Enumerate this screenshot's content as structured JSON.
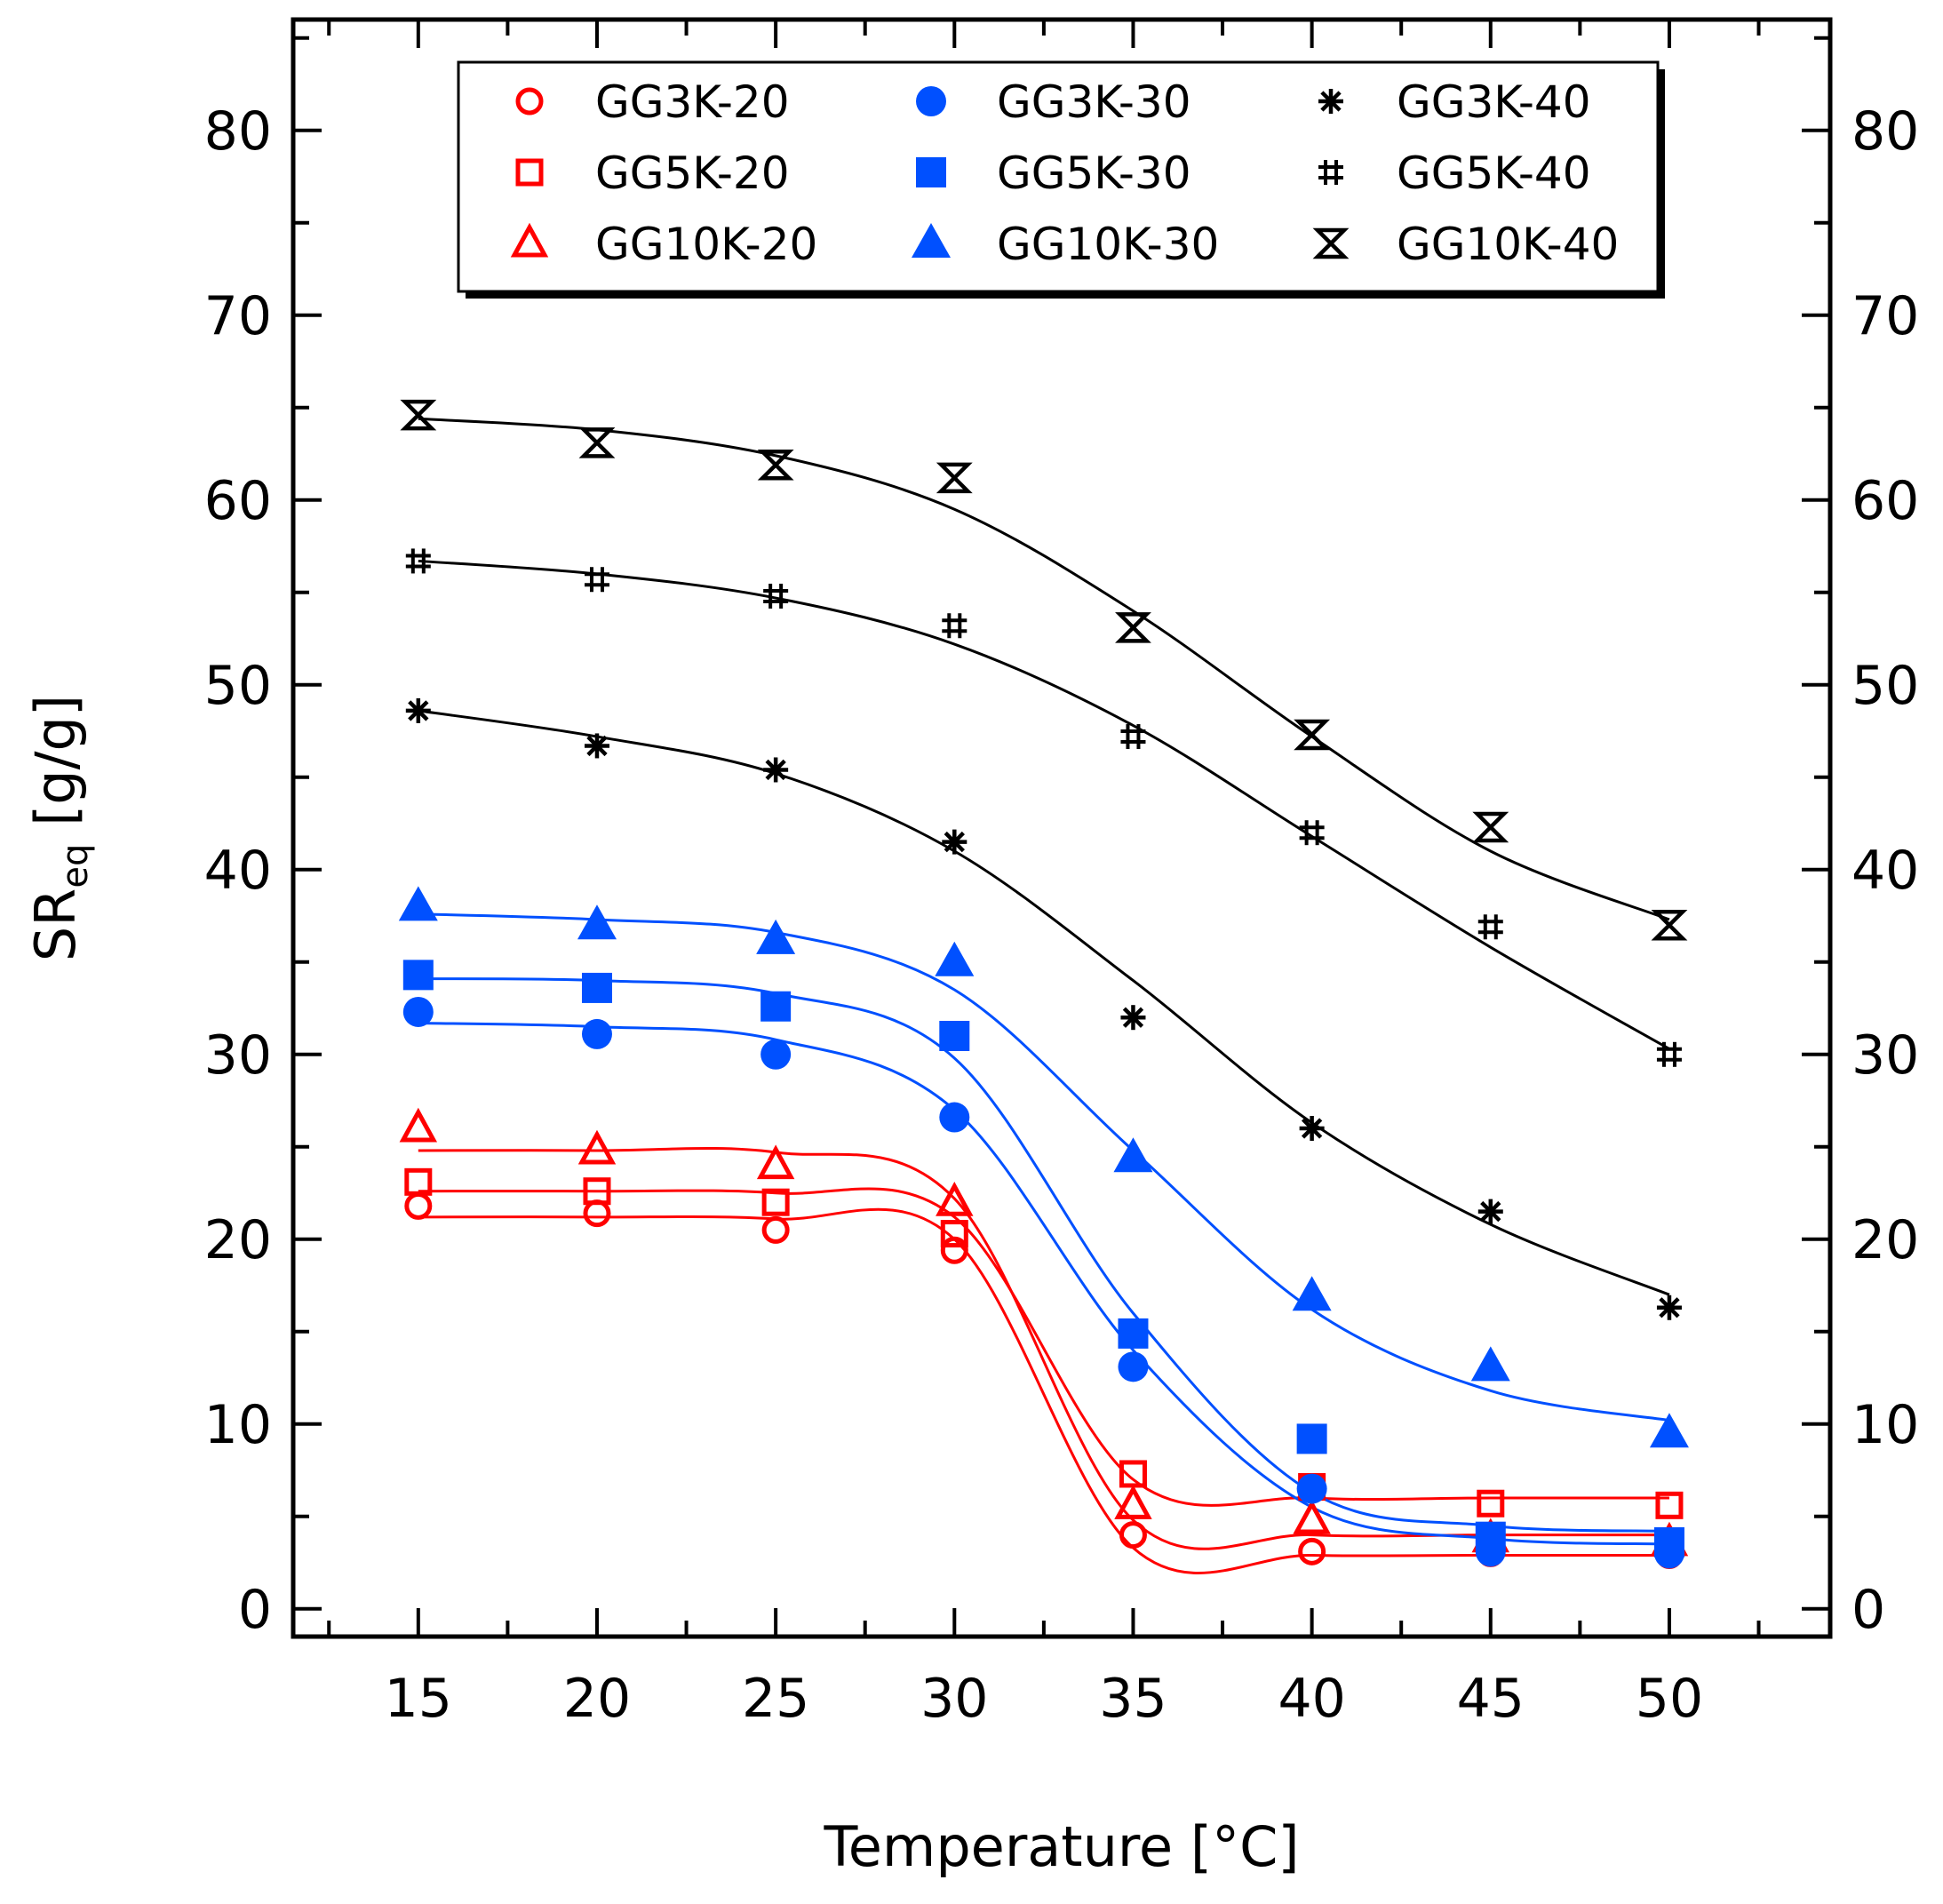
{
  "chart_data": {
    "type": "scatter",
    "title": "",
    "xlabel": "Temperature [°C]",
    "ylabel_main": "SR",
    "ylabel_sub": "eq",
    "ylabel_unit": " [g/g]",
    "xlim": [
      11.5,
      54.5
    ],
    "ylim": [
      -1.5,
      86
    ],
    "x_ticks": [
      15,
      20,
      25,
      30,
      35,
      40,
      45,
      50
    ],
    "x_tick_labels": [
      "15",
      "20",
      "25",
      "30",
      "35",
      "40",
      "45",
      "50"
    ],
    "y_ticks": [
      0,
      10,
      20,
      30,
      40,
      50,
      60,
      70,
      80
    ],
    "y_tick_labels": [
      "0",
      "10",
      "20",
      "30",
      "40",
      "50",
      "60",
      "70",
      "80"
    ],
    "grid": false,
    "legend_position": "top",
    "colors": {
      "red": "#ff0000",
      "blue": "#0050ff",
      "black": "#000000"
    },
    "x": [
      15,
      20,
      25,
      30,
      35,
      40,
      45,
      50
    ],
    "series": [
      {
        "name": "GG3K-20",
        "color": "#ff0000",
        "marker": "circle-open",
        "values": [
          21.8,
          21.4,
          20.5,
          19.4,
          4.0,
          3.1,
          3.0,
          2.9
        ],
        "fit": [
          21.2,
          21.2,
          21.1,
          20.0,
          3.3,
          2.9,
          2.9,
          2.9
        ]
      },
      {
        "name": "GG5K-20",
        "color": "#ff0000",
        "marker": "square-open",
        "values": [
          23.1,
          22.6,
          22.0,
          20.3,
          7.3,
          6.6,
          5.7,
          5.6
        ],
        "fit": [
          22.6,
          22.6,
          22.5,
          21.2,
          7.0,
          6.0,
          6.0,
          6.0
        ]
      },
      {
        "name": "GG10K-20",
        "color": "#ff0000",
        "marker": "triangle-open",
        "values": [
          26.0,
          24.8,
          24.0,
          22.0,
          5.6,
          4.8,
          3.8,
          3.6
        ],
        "fit": [
          24.8,
          24.8,
          24.7,
          22.2,
          4.8,
          4.0,
          4.0,
          4.0
        ]
      },
      {
        "name": "GG3K-30",
        "color": "#0050ff",
        "marker": "circle-filled",
        "values": [
          32.3,
          31.1,
          30.0,
          26.6,
          13.1,
          6.5,
          3.1,
          3.0
        ],
        "fit": [
          31.7,
          31.5,
          30.8,
          27.0,
          14.0,
          5.5,
          3.8,
          3.5
        ]
      },
      {
        "name": "GG5K-30",
        "color": "#0050ff",
        "marker": "square-filled",
        "values": [
          34.3,
          33.6,
          32.6,
          31.0,
          14.9,
          9.2,
          3.9,
          3.6
        ],
        "fit": [
          34.1,
          34.0,
          33.3,
          29.8,
          16.0,
          6.3,
          4.5,
          4.2
        ]
      },
      {
        "name": "GG10K-30",
        "color": "#0050ff",
        "marker": "triangle-filled",
        "values": [
          38.0,
          37.0,
          36.2,
          35.0,
          24.4,
          16.9,
          13.1,
          9.5
        ],
        "fit": [
          37.6,
          37.3,
          36.6,
          33.5,
          24.8,
          16.2,
          11.8,
          10.2
        ]
      },
      {
        "name": "GG3K-40",
        "color": "#000000",
        "marker": "asterisk",
        "values": [
          48.6,
          46.7,
          45.4,
          41.5,
          32.0,
          26.0,
          21.5,
          16.3
        ],
        "fit": [
          48.6,
          47.2,
          45.2,
          41.0,
          34.0,
          26.3,
          20.8,
          17.0
        ]
      },
      {
        "name": "GG5K-40",
        "color": "#000000",
        "marker": "hash",
        "values": [
          56.7,
          55.7,
          54.8,
          53.2,
          47.2,
          42.0,
          36.9,
          30.0
        ],
        "fit": [
          56.7,
          56.0,
          54.7,
          52.2,
          47.8,
          41.8,
          35.8,
          30.3
        ]
      },
      {
        "name": "GG10K-40",
        "color": "#000000",
        "marker": "hourglass",
        "values": [
          64.6,
          63.1,
          61.9,
          61.2,
          53.1,
          47.3,
          42.3,
          37.0
        ],
        "fit": [
          64.4,
          63.8,
          62.4,
          59.5,
          54.0,
          47.2,
          41.0,
          37.3
        ]
      }
    ]
  }
}
